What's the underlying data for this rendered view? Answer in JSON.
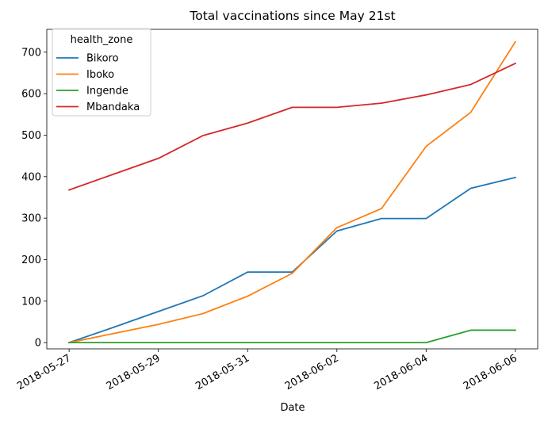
{
  "chart_data": {
    "type": "line",
    "title": "Total vaccinations since May 21st",
    "xlabel": "Date",
    "ylabel": "",
    "x": [
      "2018-05-27",
      "2018-05-28",
      "2018-05-29",
      "2018-05-30",
      "2018-05-31",
      "2018-06-01",
      "2018-06-02",
      "2018-06-03",
      "2018-06-04",
      "2018-06-05",
      "2018-06-06"
    ],
    "x_tick_labels": [
      "2018-05-27",
      "2018-05-29",
      "2018-05-31",
      "2018-06-02",
      "2018-06-04",
      "2018-06-06"
    ],
    "y_ticks": [
      0,
      100,
      200,
      300,
      400,
      500,
      600,
      700
    ],
    "ylim": [
      -15,
      755
    ],
    "grid": false,
    "legend": {
      "title": "health_zone",
      "placement": "top-left"
    },
    "series": [
      {
        "name": "Bikoro",
        "color": "#1f77b4",
        "values": [
          0,
          37,
          75,
          113,
          170,
          170,
          269,
          299,
          299,
          372,
          398
        ]
      },
      {
        "name": "Iboko",
        "color": "#ff7f0e",
        "values": [
          0,
          22,
          44,
          70,
          112,
          167,
          277,
          323,
          473,
          555,
          725
        ]
      },
      {
        "name": "Ingende",
        "color": "#2ca02c",
        "values": [
          0,
          0,
          0,
          0,
          0,
          0,
          0,
          0,
          0,
          30,
          30
        ]
      },
      {
        "name": "Mbandaka",
        "color": "#d62728",
        "values": [
          368,
          406,
          444,
          499,
          529,
          567,
          567,
          577,
          597,
          622,
          673
        ]
      }
    ]
  }
}
